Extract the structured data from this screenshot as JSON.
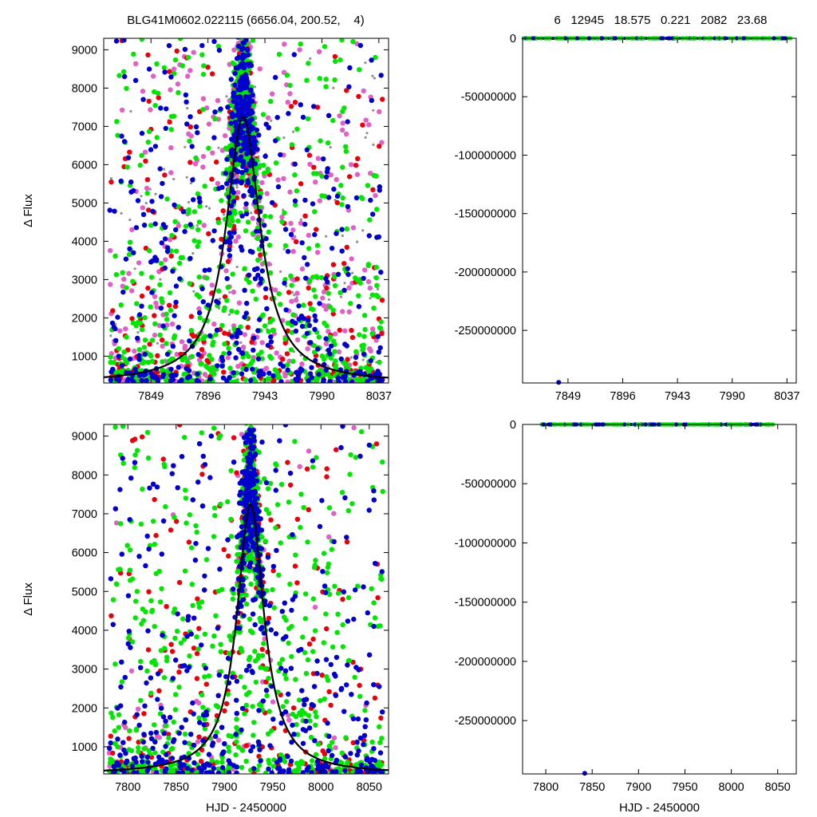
{
  "header": {
    "left_title": "BLG41M0602.022115 (6656.04, 200.52,    4)",
    "right_title": "6   12945   18.575   0.221   2082   23.68"
  },
  "colors": {
    "red": "#e8000b",
    "magenta": "#e060c8",
    "green": "#00e600",
    "blue": "#0000cc",
    "gray": "#909090",
    "model": "#000000"
  },
  "chart_data": [
    {
      "id": "top-left",
      "type": "scatter",
      "title": "",
      "xlabel": "",
      "ylabel": "Δ Flux",
      "xlim": [
        7810,
        8045
      ],
      "ylim": [
        300,
        9300
      ],
      "xticks": [
        7849,
        7896,
        7943,
        7990,
        8037
      ],
      "yticks": [
        1000,
        2000,
        3000,
        4000,
        5000,
        6000,
        7000,
        8000,
        9000
      ],
      "grid": false,
      "model": {
        "type": "line",
        "peak_x": 7925,
        "peak_y": 7250,
        "baseline": 300,
        "width": 17
      },
      "series": [
        {
          "color": "gray",
          "note_points": "sparse"
        },
        {
          "color": "magenta"
        },
        {
          "color": "red"
        },
        {
          "color": "green"
        },
        {
          "color": "blue"
        }
      ]
    },
    {
      "id": "top-right",
      "type": "scatter",
      "title": "",
      "xlabel": "",
      "ylabel": "",
      "xlim": [
        7810,
        8045
      ],
      "ylim": [
        -295000000,
        0
      ],
      "xticks": [
        7849,
        7896,
        7943,
        7990,
        8037
      ],
      "yticks": [
        0,
        -50000000,
        -100000000,
        -150000000,
        -200000000,
        -250000000
      ],
      "grid": false,
      "band": {
        "y": 0,
        "x_from": 7810,
        "x_to": 8040
      },
      "outlier": {
        "x": 7841,
        "y": -294500000
      }
    },
    {
      "id": "bottom-left",
      "type": "scatter",
      "title": "",
      "xlabel": "HJD - 2450000",
      "ylabel": "Δ Flux",
      "xlim": [
        7775,
        8070
      ],
      "ylim": [
        300,
        9300
      ],
      "xticks": [
        7800,
        7850,
        7900,
        7950,
        8000,
        8050
      ],
      "yticks": [
        1000,
        2000,
        3000,
        4000,
        5000,
        6000,
        7000,
        8000,
        9000
      ],
      "grid": false,
      "model": {
        "type": "line",
        "peak_x": 7927,
        "peak_y": 7250,
        "baseline": 300,
        "width": 17
      }
    },
    {
      "id": "bottom-right",
      "type": "scatter",
      "title": "",
      "xlabel": "HJD - 2450000",
      "ylabel": "",
      "xlim": [
        7775,
        8070
      ],
      "ylim": [
        -295000000,
        0
      ],
      "xticks": [
        7800,
        7850,
        7900,
        7950,
        8000,
        8050
      ],
      "yticks": [
        0,
        -50000000,
        -100000000,
        -150000000,
        -200000000,
        -250000000
      ],
      "grid": false,
      "band": {
        "y": 0,
        "x_from": 7795,
        "x_to": 8045
      },
      "outlier": {
        "x": 7842,
        "y": -294500000
      }
    }
  ]
}
